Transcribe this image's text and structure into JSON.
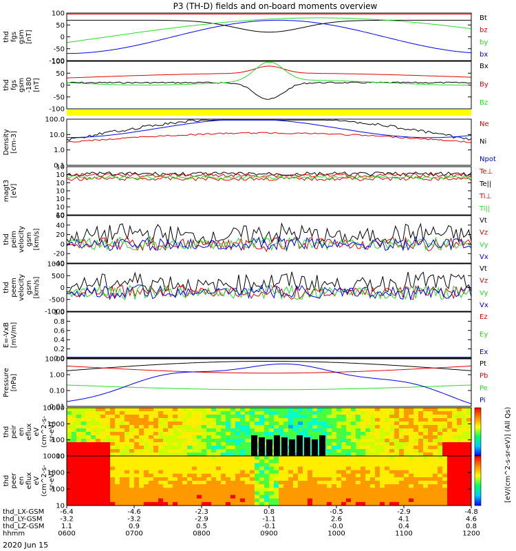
{
  "title": "P3 (TH-D) fields and on-board moments overview",
  "date_label": "2020 Jun 15",
  "colorbar_label": "[eV/(cm^2-s-sr-eV)] (All Qs)",
  "colors": {
    "black": "#000000",
    "red": "#e00000",
    "green": "#22dd22",
    "blue": "#0000ee",
    "yellow": "#ffff00"
  },
  "orbit_rows": [
    {
      "label": "thd_LX-GSM",
      "values": [
        "-6.4",
        "-4.6",
        "-2.3",
        "0.8",
        "-0.5",
        "-2.9",
        "-4.8"
      ]
    },
    {
      "label": "thd_LY-GSM",
      "values": [
        "-3.2",
        "-3.2",
        "-2.9",
        "-1.1",
        "2.6",
        "4.1",
        "4.6"
      ]
    },
    {
      "label": "thd_LZ-GSM",
      "values": [
        "1.1",
        "0.9",
        "0.5",
        "-0.1",
        "-0.0",
        "0.4",
        "0.8"
      ]
    },
    {
      "label": "hhmm",
      "values": [
        "0600",
        "0700",
        "0800",
        "0900",
        "1000",
        "1100",
        "1200"
      ]
    }
  ],
  "chart_data": [
    {
      "type": "line",
      "ylabel": [
        "thd",
        "fgs",
        "gsm",
        "[nT]"
      ],
      "ylim": [
        -100,
        100
      ],
      "yticks": [
        "100",
        "50",
        "0",
        "-50",
        "-100"
      ],
      "legend": [
        "Bt",
        "bz",
        "by",
        "bx"
      ]
    },
    {
      "type": "line",
      "ylabel": [
        "thd",
        "fgs",
        "gsm",
        "-180",
        "[nT]"
      ],
      "ylim": [
        -150,
        100
      ],
      "yticks": [
        "100",
        "50",
        "0",
        "-50",
        "-100"
      ],
      "legend": [
        "Bx",
        "By",
        "Bz"
      ]
    },
    {
      "type": "bar",
      "series": "status bar"
    },
    {
      "type": "line",
      "ylabel": [
        "Density",
        "[cm-3]"
      ],
      "yscale": "log",
      "yticks": [
        "100.0",
        "10.0",
        "1.0",
        "0.1"
      ],
      "legend": [
        "Ne",
        "Ni",
        "Npot"
      ]
    },
    {
      "type": "line",
      "ylabel": [
        "magt3",
        "[eV]"
      ],
      "yscale": "log",
      "yticks": [
        "10",
        "10",
        "10",
        "10",
        "10",
        "10",
        "10"
      ],
      "legend": [
        "Te⊥",
        "Te||",
        "Ti⊥",
        "Ti||"
      ]
    },
    {
      "type": "line",
      "ylabel": [
        "thd",
        "peim",
        "velocity",
        "gsm",
        "[km/s]"
      ],
      "ylim": [
        -40,
        60
      ],
      "yticks": [
        "60",
        "40",
        "20",
        "0",
        "-20",
        "-40"
      ],
      "legend": [
        "Vt",
        "Vz",
        "Vy",
        "Vx"
      ]
    },
    {
      "type": "line",
      "ylabel": [
        "thd",
        "peem",
        "velocity",
        "gsm",
        "[km/s]"
      ],
      "ylim": [
        -1000,
        1000
      ],
      "yticks": [
        "1000",
        "500",
        "0",
        "-500",
        "-1000"
      ],
      "legend": [
        "Vt",
        "Vz",
        "Vy",
        "Vx"
      ]
    },
    {
      "type": "line",
      "ylabel": [
        "E=-VxB",
        "[mV/m]"
      ],
      "ylim": [
        0,
        1
      ],
      "yticks": [
        "1.0",
        "0.8",
        "0.6",
        "0.4",
        "0.2",
        "0.0"
      ],
      "legend": [
        "Ez",
        "Ey",
        "Ex"
      ]
    },
    {
      "type": "line",
      "ylabel": [
        "Pressure",
        "[nPa]"
      ],
      "yscale": "log",
      "yticks": [
        "10.00",
        "1.00",
        "0.10",
        "0.01"
      ],
      "legend": [
        "Pt",
        "Pb",
        "Pe",
        "Pi"
      ]
    },
    {
      "type": "heatmap",
      "ylabel": [
        "thd",
        "peir",
        "en",
        "eflux",
        "eV",
        "(cm^2-s-",
        "sr-eV)"
      ],
      "yscale": "log",
      "yticks": [
        "10000",
        "1000",
        "100",
        "10"
      ]
    },
    {
      "type": "heatmap",
      "ylabel": [
        "thd",
        "peer",
        "en",
        "eflux",
        "eV",
        "(cm^2-s-",
        "sr-eV)"
      ],
      "yscale": "log",
      "yticks": [
        "10000",
        "1000",
        "100",
        "10"
      ]
    }
  ]
}
